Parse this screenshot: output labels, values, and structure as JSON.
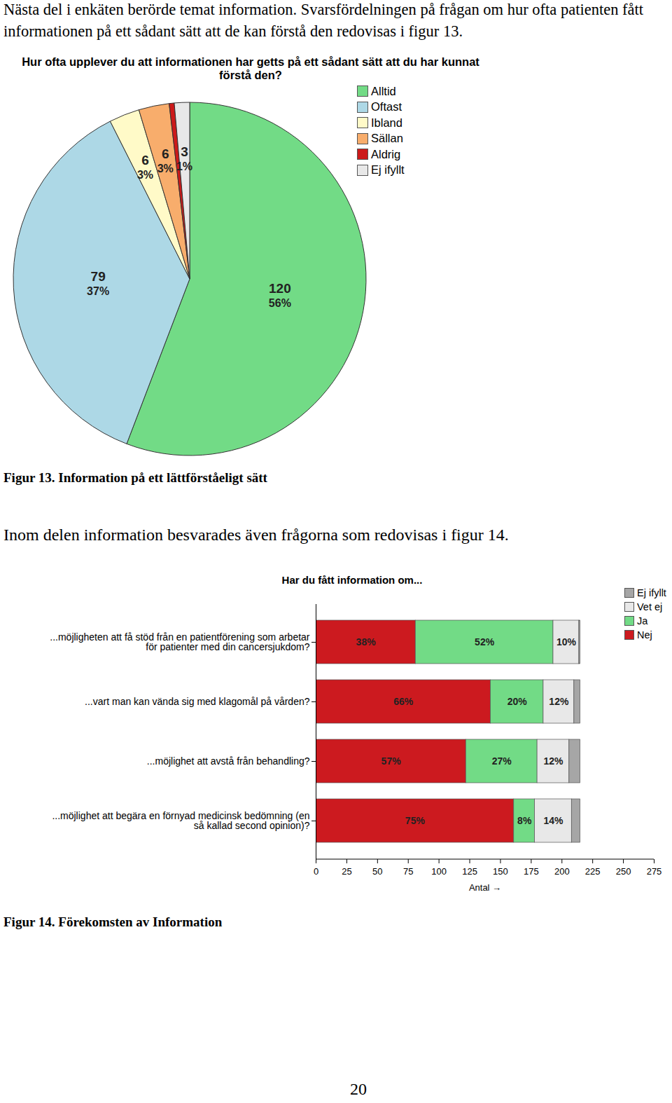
{
  "document": {
    "paragraphs": [
      "Nästa del i enkäten berörde temat information. Svarsfördelningen på frågan om hur ofta patienten fått informationen på ett sådant sätt att de kan förstå den redovisas i figur 13.",
      "Inom delen information besvarades även frågorna som redovisas i figur 14."
    ],
    "captions": [
      "Figur 13. Information på ett lättförståeligt sätt",
      "Figur 14. Förekomsten av Information"
    ],
    "page_number": "20"
  },
  "chart_data": [
    {
      "type": "pie",
      "title": "Hur ofta upplever du att informationen har getts på ett sådant sätt att du har kunnat förstå den?",
      "categories": [
        "Alltid",
        "Oftast",
        "Ibland",
        "Sällan",
        "Aldrig",
        "Ej ifyllt"
      ],
      "values": [
        120,
        79,
        6,
        6,
        1,
        3
      ],
      "value_labels": [
        "120",
        "79",
        "6",
        "6",
        null,
        "3"
      ],
      "percent_labels": [
        "56%",
        "37%",
        "3%",
        "3%",
        null,
        "1%"
      ],
      "colors": [
        "#72db86",
        "#add8e6",
        "#fffac8",
        "#f8ad6c",
        "#cc1a1a",
        "#e8e8e8"
      ],
      "legend": "right",
      "data_labels": true
    },
    {
      "type": "bar",
      "orientation": "horizontal",
      "stacked": true,
      "title": "Har du fått information om...",
      "categories": [
        "...möjligheten att få stöd från en patientförening som arbetar för patienter med din cancersjukdom?",
        "...vart man kan vända sig med klagomål på vården?",
        "...möjlighet att avstå från behandling?",
        "...möjlighet att begära en förnyad medicinsk bedömning (en så kallad second opinion)?"
      ],
      "series": [
        {
          "name": "Nej",
          "color": "#cc1a1f",
          "values": [
            81,
            142,
            122,
            161
          ],
          "percent_labels": [
            "38%",
            "66%",
            "57%",
            "75%"
          ]
        },
        {
          "name": "Ja",
          "color": "#72db86",
          "values": [
            112,
            43,
            58,
            17
          ],
          "percent_labels": [
            "52%",
            "20%",
            "27%",
            "8%"
          ]
        },
        {
          "name": "Vet ej",
          "color": "#e8e8e8",
          "values": [
            21,
            25,
            26,
            30
          ],
          "percent_labels": [
            "10%",
            "12%",
            "12%",
            "14%"
          ]
        },
        {
          "name": "Ej ifyllt",
          "color": "#a6a6a6",
          "values": [
            1,
            5,
            9,
            7
          ],
          "percent_labels": [
            null,
            null,
            null,
            null
          ]
        }
      ],
      "xlabel": "Antal",
      "xlim": [
        0,
        275
      ],
      "xticks": [
        0,
        25,
        50,
        75,
        100,
        125,
        150,
        175,
        200,
        225,
        250,
        275
      ],
      "legend": "top-right",
      "data_labels": true
    }
  ]
}
